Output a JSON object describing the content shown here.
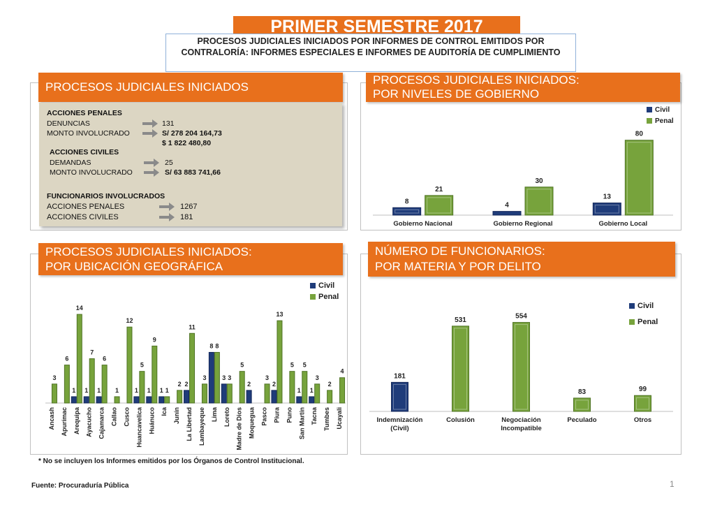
{
  "title": "PRIMER SEMESTRE 2017",
  "subtitle": "PROCESOS JUDICIALES INICIADOS POR INFORMES DE CONTROL EMITIDOS POR CONTRALORÍA: INFORMES ESPECIALES E INFORMES DE AUDITORÍA DE CUMPLIMIENTO",
  "panels": {
    "iniciados": {
      "header": "PROCESOS JUDICIALES INICIADOS",
      "acciones_penales": "ACCIONES PENALES",
      "denuncias_label": "DENUNCIAS",
      "denuncias_value": "131",
      "monto_penal_label": "MONTO INVOLUCRADO",
      "monto_penal_soles": "S/ 278 204 164,73",
      "monto_penal_usd": "$  1 822 480,80",
      "acciones_civiles": "ACCIONES CIVILES",
      "demandas_label": "DEMANDAS",
      "demandas_value": "25",
      "monto_civil_label": "MONTO INVOLUCRADO",
      "monto_civil_soles": "S/ 63 883 741,66",
      "funcionarios": "FUNCIONARIOS INVOLUCRADOS",
      "func_penales_label": "ACCIONES PENALES",
      "func_penales_value": "1267",
      "func_civiles_label": "ACCIONES CIVILES",
      "func_civiles_value": "181"
    },
    "niveles": {
      "header_line1": "PROCESOS JUDICIALES INICIADOS:",
      "header_line2": "POR NIVELES DE GOBIERNO"
    },
    "geografica": {
      "header_line1": "PROCESOS JUDICIALES  INICIADOS:",
      "header_line2": "POR UBICACIÓN GEOGRÁFICA"
    },
    "funcionarios": {
      "header_line1": "NÚMERO DE FUNCIONARIOS:",
      "header_line2": "POR MATERIA Y  POR DELITO"
    }
  },
  "colors": {
    "orange": "#e8701c",
    "civil": "#1f3c7a",
    "penal": "#77a33c"
  },
  "chart_data": [
    {
      "type": "bar",
      "categories": [
        "Gobierno Nacional",
        "Gobierno Regional",
        "Gobierno Local"
      ],
      "series": [
        {
          "name": "Civil",
          "values": [
            8,
            4,
            13
          ]
        },
        {
          "name": "Penal",
          "values": [
            21,
            30,
            80
          ]
        }
      ],
      "legend": "top-right",
      "ylim": [
        0,
        85
      ]
    },
    {
      "type": "bar",
      "categories": [
        "Ancash",
        "Apurímac",
        "Arequipa",
        "Ayacucho",
        "Cajamarca",
        "Callao",
        "Cusco",
        "Huancavelica",
        "Huánuco",
        "Ica",
        "Junín",
        "La Libertad",
        "Lambayeque",
        "Lima",
        "Loreto",
        "Madre de Dios",
        "Moquegua",
        "Pasco",
        "Piura",
        "Puno",
        "San Martín",
        "Tacna",
        "Tumbes",
        "Ucayali"
      ],
      "series": [
        {
          "name": "Civil",
          "values": [
            null,
            null,
            1,
            1,
            1,
            null,
            null,
            1,
            1,
            1,
            null,
            2,
            null,
            8,
            3,
            null,
            2,
            null,
            2,
            null,
            1,
            1,
            null,
            null
          ]
        },
        {
          "name": "Penal",
          "values": [
            3,
            6,
            14,
            7,
            6,
            1,
            12,
            5,
            9,
            1,
            2,
            11,
            3,
            8,
            3,
            5,
            null,
            3,
            13,
            5,
            5,
            3,
            2,
            4
          ]
        }
      ],
      "legend": "top-right",
      "ylim": [
        0,
        15
      ]
    },
    {
      "type": "bar",
      "categories": [
        "Indemnización (Civil)",
        "Colusión",
        "Negociación Incompatible",
        "Peculado",
        "Otros"
      ],
      "series": [
        {
          "name": "Civil",
          "values": [
            181,
            null,
            null,
            null,
            null
          ]
        },
        {
          "name": "Penal",
          "values": [
            null,
            531,
            554,
            83,
            99
          ]
        }
      ],
      "legend": "top-right",
      "ylim": [
        0,
        600
      ]
    }
  ],
  "footnote": "*  No se incluyen los Informes emitidos por los Órganos de Control Institucional.",
  "source": "Fuente: Procuraduría Pública",
  "page_number": "1"
}
